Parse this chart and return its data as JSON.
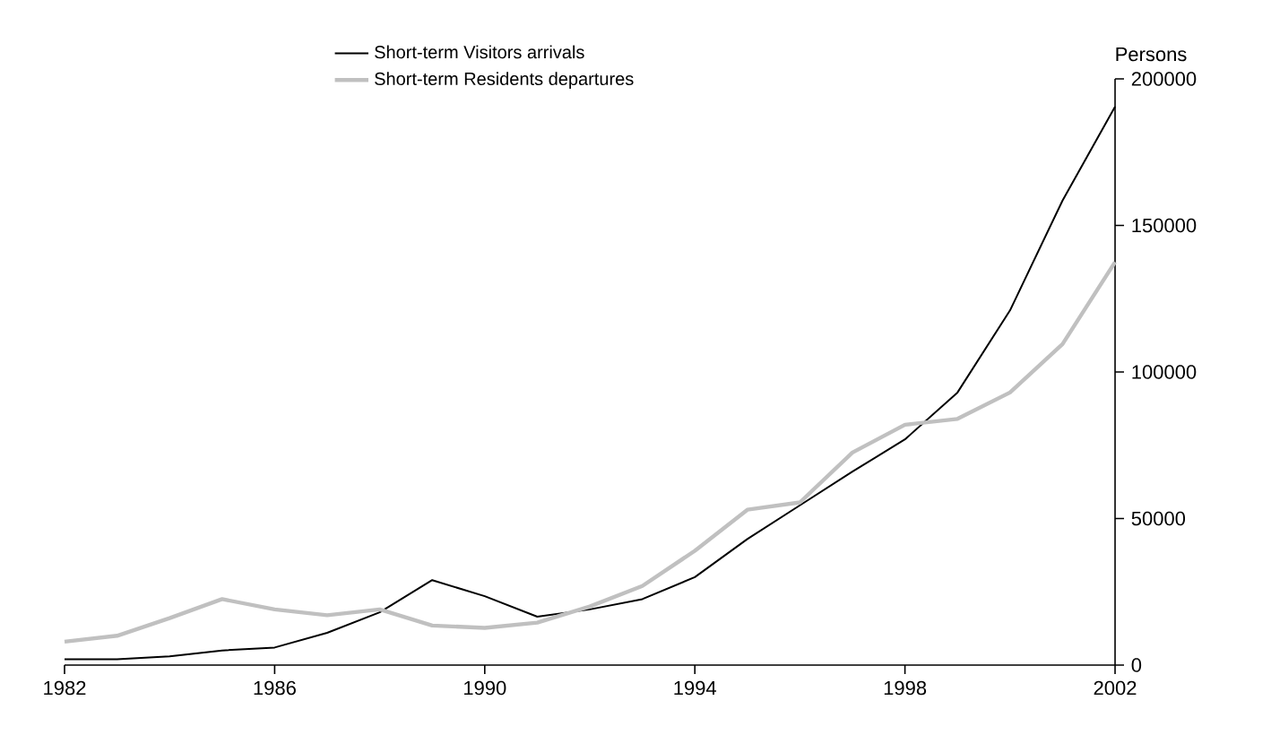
{
  "chart_data": {
    "type": "line",
    "ylabel": "Persons",
    "x": [
      1982,
      1983,
      1984,
      1985,
      1986,
      1987,
      1988,
      1989,
      1990,
      1991,
      1992,
      1993,
      1994,
      1995,
      1996,
      1997,
      1998,
      1999,
      2000,
      2001,
      2002
    ],
    "series": [
      {
        "name": "Short-term Visitors arrivals",
        "color": "#000000",
        "values": [
          2000,
          2000,
          3000,
          5000,
          6000,
          11000,
          18000,
          29000,
          23500,
          16500,
          19000,
          22500,
          30000,
          43000,
          54500,
          66000,
          77000,
          93000,
          121000,
          158500,
          190500
        ]
      },
      {
        "name": "Short-term Residents departures",
        "color": "#c0c0c0",
        "values": [
          8000,
          10000,
          16000,
          22500,
          19000,
          17000,
          19000,
          13500,
          12700,
          14500,
          20000,
          27000,
          39000,
          53000,
          55500,
          72500,
          82000,
          84000,
          93000,
          109500,
          137500
        ]
      }
    ],
    "xlim": [
      1982,
      2002
    ],
    "ylim": [
      0,
      200000
    ],
    "xticks": [
      1982,
      1986,
      1990,
      1994,
      1998,
      2002
    ],
    "yticks": [
      0,
      50000,
      100000,
      150000,
      200000
    ],
    "grid": false,
    "legend": "top left"
  }
}
